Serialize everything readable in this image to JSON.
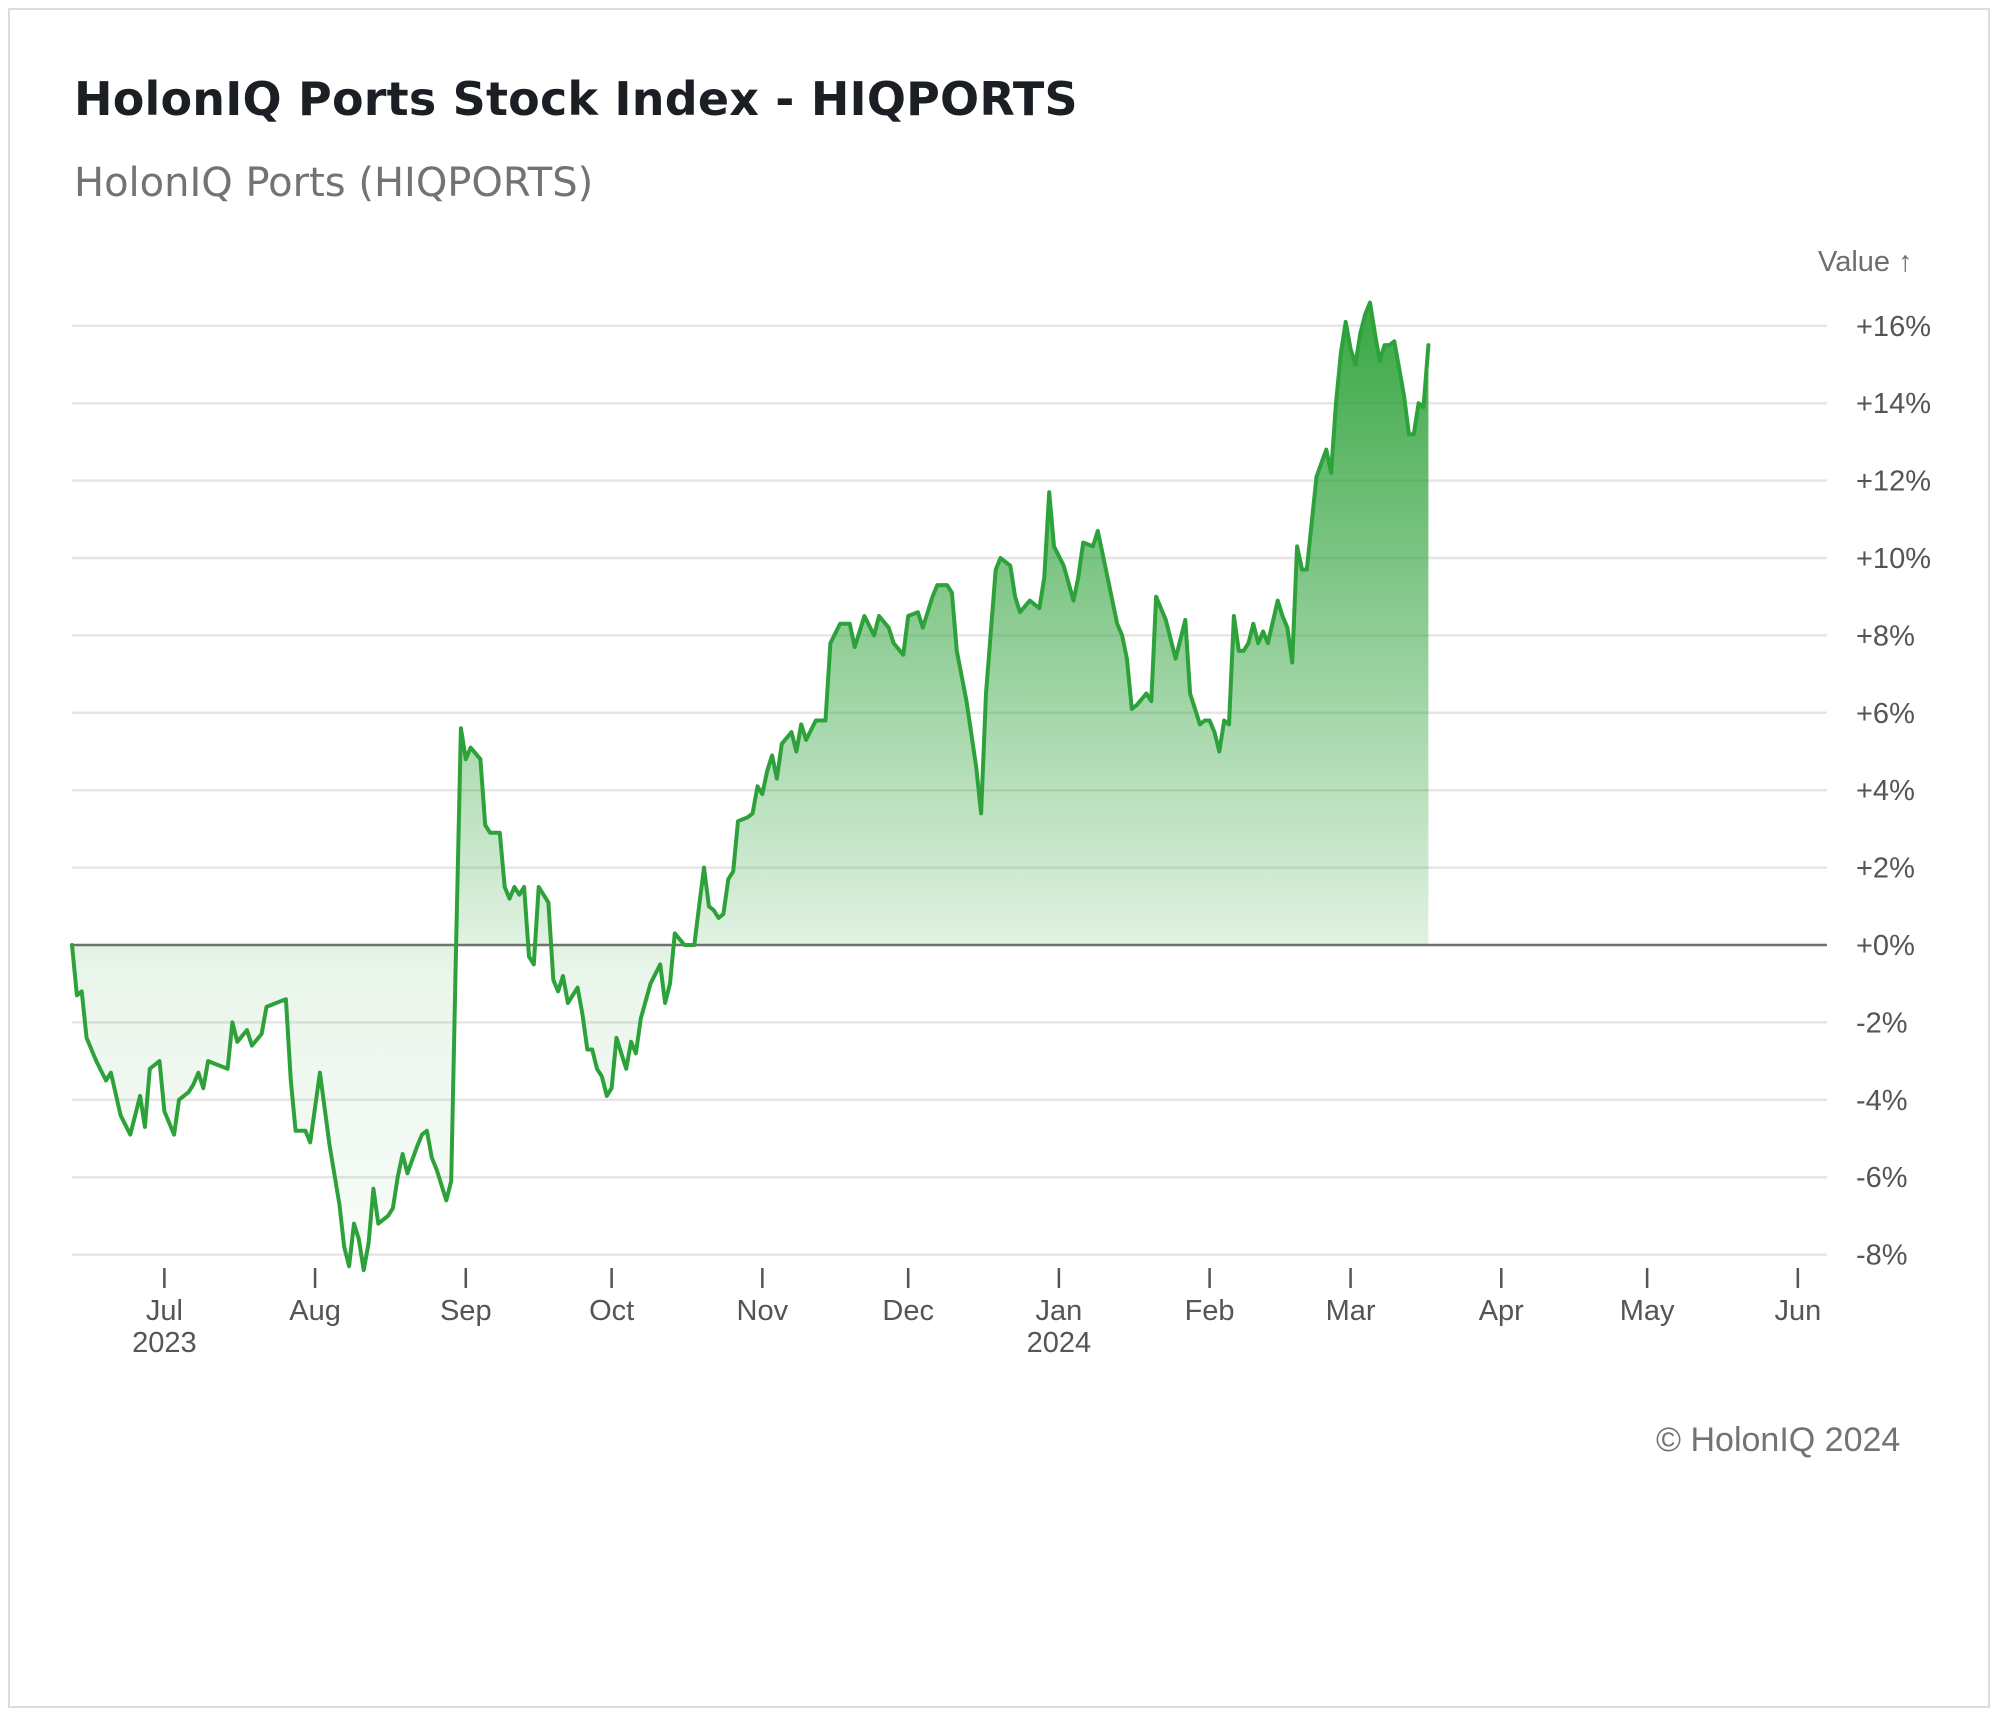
{
  "header": {
    "title": "HolonIQ Ports Stock Index - HIQPORTS",
    "subtitle": "HolonIQ Ports (HIQPORTS)"
  },
  "footer": {
    "copyright": "© HolonIQ 2024"
  },
  "colors": {
    "line": "#2ea23a",
    "fill_top": "#2ea23a",
    "grid": "#e6e6e6",
    "zero_line": "#707070"
  },
  "chart_data": {
    "type": "area",
    "title": "HolonIQ Ports Stock Index - HIQPORTS",
    "subtitle": "HolonIQ Ports (HIQPORTS)",
    "ylabel": "Value ↑",
    "y_unit": "%",
    "ylim": [
      -8.5,
      16.8
    ],
    "yticks": [
      16,
      14,
      12,
      10,
      8,
      6,
      4,
      2,
      0,
      -2,
      -4,
      -6,
      -8
    ],
    "ytick_labels": [
      "+16%",
      "+14%",
      "+12%",
      "+10%",
      "+8%",
      "+6%",
      "+4%",
      "+2%",
      "+0%",
      "-2%",
      "-4%",
      "-6%",
      "-8%"
    ],
    "y_axis_position": "right",
    "grid": true,
    "xlim": [
      "2023-06-12",
      "2024-06-07"
    ],
    "xticks": [
      {
        "date": "2023-07-01",
        "label": "Jul",
        "year": "2023"
      },
      {
        "date": "2023-08-01",
        "label": "Aug",
        "year": ""
      },
      {
        "date": "2023-09-01",
        "label": "Sep",
        "year": ""
      },
      {
        "date": "2023-10-01",
        "label": "Oct",
        "year": ""
      },
      {
        "date": "2023-11-01",
        "label": "Nov",
        "year": ""
      },
      {
        "date": "2023-12-01",
        "label": "Dec",
        "year": ""
      },
      {
        "date": "2024-01-01",
        "label": "Jan",
        "year": "2024"
      },
      {
        "date": "2024-02-01",
        "label": "Feb",
        "year": ""
      },
      {
        "date": "2024-03-01",
        "label": "Mar",
        "year": ""
      },
      {
        "date": "2024-04-01",
        "label": "Apr",
        "year": ""
      },
      {
        "date": "2024-05-01",
        "label": "May",
        "year": ""
      },
      {
        "date": "2024-06-01",
        "label": "Jun",
        "year": ""
      }
    ],
    "series": [
      {
        "points": [
          [
            "2023-06-12",
            0.0
          ],
          [
            "2023-06-13",
            -1.3
          ],
          [
            "2023-06-14",
            -1.2
          ],
          [
            "2023-06-15",
            -2.4
          ],
          [
            "2023-06-17",
            -3.0
          ],
          [
            "2023-06-19",
            -3.5
          ],
          [
            "2023-06-20",
            -3.3
          ],
          [
            "2023-06-22",
            -4.4
          ],
          [
            "2023-06-24",
            -4.9
          ],
          [
            "2023-06-26",
            -3.9
          ],
          [
            "2023-06-27",
            -4.7
          ],
          [
            "2023-06-28",
            -3.2
          ],
          [
            "2023-06-30",
            -3.0
          ],
          [
            "2023-07-01",
            -4.3
          ],
          [
            "2023-07-03",
            -4.9
          ],
          [
            "2023-07-04",
            -4.0
          ],
          [
            "2023-07-06",
            -3.8
          ],
          [
            "2023-07-07",
            -3.6
          ],
          [
            "2023-07-08",
            -3.3
          ],
          [
            "2023-07-09",
            -3.7
          ],
          [
            "2023-07-10",
            -3.0
          ],
          [
            "2023-07-12",
            -3.1
          ],
          [
            "2023-07-14",
            -3.2
          ],
          [
            "2023-07-15",
            -2.0
          ],
          [
            "2023-07-16",
            -2.5
          ],
          [
            "2023-07-18",
            -2.2
          ],
          [
            "2023-07-19",
            -2.6
          ],
          [
            "2023-07-21",
            -2.3
          ],
          [
            "2023-07-22",
            -1.6
          ],
          [
            "2023-07-24",
            -1.5
          ],
          [
            "2023-07-26",
            -1.4
          ],
          [
            "2023-07-27",
            -3.5
          ],
          [
            "2023-07-28",
            -4.8
          ],
          [
            "2023-07-30",
            -4.8
          ],
          [
            "2023-07-31",
            -5.1
          ],
          [
            "2023-08-02",
            -3.3
          ],
          [
            "2023-08-04",
            -5.2
          ],
          [
            "2023-08-06",
            -6.7
          ],
          [
            "2023-08-07",
            -7.8
          ],
          [
            "2023-08-08",
            -8.3
          ],
          [
            "2023-08-09",
            -7.2
          ],
          [
            "2023-08-10",
            -7.6
          ],
          [
            "2023-08-11",
            -8.4
          ],
          [
            "2023-08-12",
            -7.7
          ],
          [
            "2023-08-13",
            -6.3
          ],
          [
            "2023-08-14",
            -7.2
          ],
          [
            "2023-08-16",
            -7.0
          ],
          [
            "2023-08-17",
            -6.8
          ],
          [
            "2023-08-18",
            -6.0
          ],
          [
            "2023-08-19",
            -5.4
          ],
          [
            "2023-08-20",
            -5.9
          ],
          [
            "2023-08-22",
            -5.2
          ],
          [
            "2023-08-23",
            -4.9
          ],
          [
            "2023-08-24",
            -4.8
          ],
          [
            "2023-08-25",
            -5.5
          ],
          [
            "2023-08-26",
            -5.8
          ],
          [
            "2023-08-28",
            -6.6
          ],
          [
            "2023-08-29",
            -6.1
          ],
          [
            "2023-08-30",
            0.0
          ],
          [
            "2023-08-31",
            5.6
          ],
          [
            "2023-09-01",
            4.8
          ],
          [
            "2023-09-02",
            5.1
          ],
          [
            "2023-09-04",
            4.8
          ],
          [
            "2023-09-05",
            3.1
          ],
          [
            "2023-09-06",
            2.9
          ],
          [
            "2023-09-08",
            2.9
          ],
          [
            "2023-09-09",
            1.5
          ],
          [
            "2023-09-10",
            1.2
          ],
          [
            "2023-09-11",
            1.5
          ],
          [
            "2023-09-12",
            1.3
          ],
          [
            "2023-09-13",
            1.5
          ],
          [
            "2023-09-14",
            -0.3
          ],
          [
            "2023-09-15",
            -0.5
          ],
          [
            "2023-09-16",
            1.5
          ],
          [
            "2023-09-18",
            1.1
          ],
          [
            "2023-09-19",
            -0.9
          ],
          [
            "2023-09-20",
            -1.2
          ],
          [
            "2023-09-21",
            -0.8
          ],
          [
            "2023-09-22",
            -1.5
          ],
          [
            "2023-09-24",
            -1.1
          ],
          [
            "2023-09-25",
            -1.8
          ],
          [
            "2023-09-26",
            -2.7
          ],
          [
            "2023-09-27",
            -2.7
          ],
          [
            "2023-09-28",
            -3.2
          ],
          [
            "2023-09-29",
            -3.4
          ],
          [
            "2023-09-30",
            -3.9
          ],
          [
            "2023-10-01",
            -3.7
          ],
          [
            "2023-10-02",
            -2.4
          ],
          [
            "2023-10-03",
            -2.8
          ],
          [
            "2023-10-04",
            -3.2
          ],
          [
            "2023-10-05",
            -2.5
          ],
          [
            "2023-10-06",
            -2.8
          ],
          [
            "2023-10-07",
            -1.9
          ],
          [
            "2023-10-09",
            -1.0
          ],
          [
            "2023-10-11",
            -0.5
          ],
          [
            "2023-10-12",
            -1.5
          ],
          [
            "2023-10-13",
            -1.0
          ],
          [
            "2023-10-14",
            0.3
          ],
          [
            "2023-10-16",
            0.0
          ],
          [
            "2023-10-18",
            0.0
          ],
          [
            "2023-10-19",
            1.0
          ],
          [
            "2023-10-20",
            2.0
          ],
          [
            "2023-10-21",
            1.0
          ],
          [
            "2023-10-22",
            0.9
          ],
          [
            "2023-10-23",
            0.7
          ],
          [
            "2023-10-24",
            0.8
          ],
          [
            "2023-10-25",
            1.7
          ],
          [
            "2023-10-26",
            1.9
          ],
          [
            "2023-10-27",
            3.2
          ],
          [
            "2023-10-29",
            3.3
          ],
          [
            "2023-10-30",
            3.4
          ],
          [
            "2023-10-31",
            4.1
          ],
          [
            "2023-11-01",
            3.9
          ],
          [
            "2023-11-02",
            4.5
          ],
          [
            "2023-11-03",
            4.9
          ],
          [
            "2023-11-04",
            4.3
          ],
          [
            "2023-11-05",
            5.2
          ],
          [
            "2023-11-07",
            5.5
          ],
          [
            "2023-11-08",
            5.0
          ],
          [
            "2023-11-09",
            5.7
          ],
          [
            "2023-11-10",
            5.3
          ],
          [
            "2023-11-12",
            5.8
          ],
          [
            "2023-11-14",
            5.8
          ],
          [
            "2023-11-15",
            7.8
          ],
          [
            "2023-11-17",
            8.3
          ],
          [
            "2023-11-19",
            8.3
          ],
          [
            "2023-11-20",
            7.7
          ],
          [
            "2023-11-21",
            8.1
          ],
          [
            "2023-11-22",
            8.5
          ],
          [
            "2023-11-24",
            8.0
          ],
          [
            "2023-11-25",
            8.5
          ],
          [
            "2023-11-27",
            8.2
          ],
          [
            "2023-11-28",
            7.8
          ],
          [
            "2023-11-30",
            7.5
          ],
          [
            "2023-12-01",
            8.5
          ],
          [
            "2023-12-03",
            8.6
          ],
          [
            "2023-12-04",
            8.2
          ],
          [
            "2023-12-06",
            9.0
          ],
          [
            "2023-12-07",
            9.3
          ],
          [
            "2023-12-09",
            9.3
          ],
          [
            "2023-12-10",
            9.1
          ],
          [
            "2023-12-11",
            7.6
          ],
          [
            "2023-12-13",
            6.3
          ],
          [
            "2023-12-15",
            4.6
          ],
          [
            "2023-12-16",
            3.4
          ],
          [
            "2023-12-17",
            6.5
          ],
          [
            "2023-12-19",
            9.7
          ],
          [
            "2023-12-20",
            10.0
          ],
          [
            "2023-12-22",
            9.8
          ],
          [
            "2023-12-23",
            9.0
          ],
          [
            "2023-12-24",
            8.6
          ],
          [
            "2023-12-26",
            8.9
          ],
          [
            "2023-12-28",
            8.7
          ],
          [
            "2023-12-29",
            9.5
          ],
          [
            "2023-12-30",
            11.7
          ],
          [
            "2023-12-31",
            10.3
          ],
          [
            "2024-01-02",
            9.8
          ],
          [
            "2024-01-04",
            8.9
          ],
          [
            "2024-01-05",
            9.5
          ],
          [
            "2024-01-06",
            10.4
          ],
          [
            "2024-01-08",
            10.3
          ],
          [
            "2024-01-09",
            10.7
          ],
          [
            "2024-01-11",
            9.5
          ],
          [
            "2024-01-13",
            8.3
          ],
          [
            "2024-01-14",
            8.0
          ],
          [
            "2024-01-15",
            7.4
          ],
          [
            "2024-01-16",
            6.1
          ],
          [
            "2024-01-17",
            6.2
          ],
          [
            "2024-01-19",
            6.5
          ],
          [
            "2024-01-20",
            6.3
          ],
          [
            "2024-01-21",
            9.0
          ],
          [
            "2024-01-23",
            8.4
          ],
          [
            "2024-01-25",
            7.4
          ],
          [
            "2024-01-27",
            8.4
          ],
          [
            "2024-01-28",
            6.5
          ],
          [
            "2024-01-30",
            5.7
          ],
          [
            "2024-01-31",
            5.8
          ],
          [
            "2024-02-01",
            5.8
          ],
          [
            "2024-02-02",
            5.5
          ],
          [
            "2024-02-03",
            5.0
          ],
          [
            "2024-02-04",
            5.8
          ],
          [
            "2024-02-05",
            5.7
          ],
          [
            "2024-02-06",
            8.5
          ],
          [
            "2024-02-07",
            7.6
          ],
          [
            "2024-02-08",
            7.6
          ],
          [
            "2024-02-09",
            7.8
          ],
          [
            "2024-02-10",
            8.3
          ],
          [
            "2024-02-11",
            7.8
          ],
          [
            "2024-02-12",
            8.1
          ],
          [
            "2024-02-13",
            7.8
          ],
          [
            "2024-02-15",
            8.9
          ],
          [
            "2024-02-16",
            8.5
          ],
          [
            "2024-02-17",
            8.2
          ],
          [
            "2024-02-18",
            7.3
          ],
          [
            "2024-02-19",
            10.3
          ],
          [
            "2024-02-20",
            9.7
          ],
          [
            "2024-02-21",
            9.7
          ],
          [
            "2024-02-23",
            12.1
          ],
          [
            "2024-02-25",
            12.8
          ],
          [
            "2024-02-26",
            12.2
          ],
          [
            "2024-02-27",
            14.0
          ],
          [
            "2024-02-28",
            15.3
          ],
          [
            "2024-02-29",
            16.1
          ],
          [
            "2024-03-01",
            15.4
          ],
          [
            "2024-03-02",
            15.0
          ],
          [
            "2024-03-03",
            15.8
          ],
          [
            "2024-03-04",
            16.3
          ],
          [
            "2024-03-05",
            16.6
          ],
          [
            "2024-03-06",
            15.8
          ],
          [
            "2024-03-07",
            15.1
          ],
          [
            "2024-03-08",
            15.5
          ],
          [
            "2024-03-09",
            15.5
          ],
          [
            "2024-03-10",
            15.6
          ],
          [
            "2024-03-12",
            14.2
          ],
          [
            "2024-03-13",
            13.2
          ],
          [
            "2024-03-14",
            13.2
          ],
          [
            "2024-03-15",
            14.0
          ],
          [
            "2024-03-16",
            13.9
          ],
          [
            "2024-03-17",
            15.5
          ]
        ]
      }
    ]
  }
}
